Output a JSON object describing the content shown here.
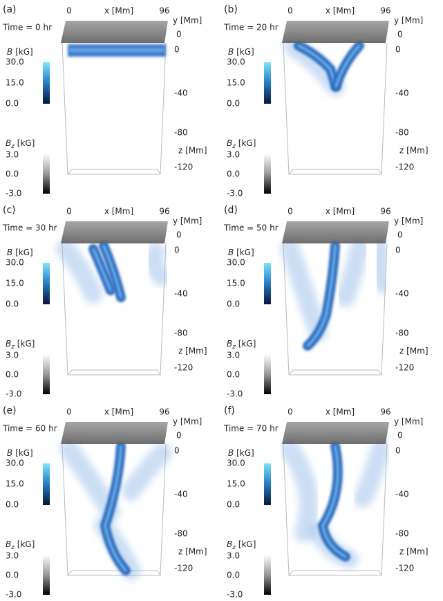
{
  "panels": [
    {
      "label": "(a)",
      "time": "Time = 0 hr",
      "x_label": "x [Mm]",
      "x_ticks": [
        "0",
        "96"
      ],
      "y_label": "y [Mm]",
      "y_ticks": [
        "0"
      ],
      "z_label": "z [Mm]",
      "z_ticks": [
        "0",
        "-40",
        "-80",
        "-120"
      ],
      "b_label": {
        "symbol": "B",
        "unit": "[kG]"
      },
      "b_ticks": [
        "30.0",
        "15.0",
        "0.0"
      ],
      "bz_label": {
        "symbol": "B",
        "subscript": "z",
        "unit": "[kG]"
      },
      "bz_ticks": [
        "3.0",
        "0.0",
        "-3.0"
      ]
    },
    {
      "label": "(b)",
      "time": "Time = 20 hr",
      "x_label": "x [Mm]",
      "x_ticks": [
        "0",
        "96"
      ],
      "y_label": "y [Mm]",
      "y_ticks": [
        "0"
      ],
      "z_label": "z [Mm]",
      "z_ticks": [
        "0",
        "-40",
        "-80",
        "-120"
      ],
      "b_label": {
        "symbol": "B",
        "unit": "[kG]"
      },
      "b_ticks": [
        "30.0",
        "15.0",
        "0.0"
      ],
      "bz_label": {
        "symbol": "B",
        "subscript": "z",
        "unit": "[kG]"
      },
      "bz_ticks": [
        "3.0",
        "0.0",
        "-3.0"
      ]
    },
    {
      "label": "(c)",
      "time": "Time = 30 hr",
      "x_label": "x [Mm]",
      "x_ticks": [
        "0",
        "96"
      ],
      "y_label": "y [Mm]",
      "y_ticks": [
        "0"
      ],
      "z_label": "z [Mm]",
      "z_ticks": [
        "0",
        "-40",
        "-80",
        "-120"
      ],
      "b_label": {
        "symbol": "B",
        "unit": "[kG]"
      },
      "b_ticks": [
        "30.0",
        "15.0",
        "0.0"
      ],
      "bz_label": {
        "symbol": "B",
        "subscript": "z",
        "unit": "[kG]"
      },
      "bz_ticks": [
        "3.0",
        "0.0",
        "-3.0"
      ]
    },
    {
      "label": "(d)",
      "time": "Time = 50 hr",
      "x_label": "x [Mm]",
      "x_ticks": [
        "0",
        "96"
      ],
      "y_label": "y [Mm]",
      "y_ticks": [
        "0"
      ],
      "z_label": "z [Mm]",
      "z_ticks": [
        "0",
        "-40",
        "-80",
        "-120"
      ],
      "b_label": {
        "symbol": "B",
        "unit": "[kG]"
      },
      "b_ticks": [
        "30.0",
        "15.0",
        "0.0"
      ],
      "bz_label": {
        "symbol": "B",
        "subscript": "z",
        "unit": "[kG]"
      },
      "bz_ticks": [
        "3.0",
        "0.0",
        "-3.0"
      ]
    },
    {
      "label": "(e)",
      "time": "Time = 60 hr",
      "x_label": "x [Mm]",
      "x_ticks": [
        "0",
        "96"
      ],
      "y_label": "y [Mm]",
      "y_ticks": [
        "0"
      ],
      "z_label": "z [Mm]",
      "z_ticks": [
        "0",
        "-40",
        "-80",
        "-120"
      ],
      "b_label": {
        "symbol": "B",
        "unit": "[kG]"
      },
      "b_ticks": [
        "30.0",
        "15.0",
        "0.0"
      ],
      "bz_label": {
        "symbol": "B",
        "subscript": "z",
        "unit": "[kG]"
      },
      "bz_ticks": [
        "3.0",
        "0.0",
        "-3.0"
      ]
    },
    {
      "label": "(f)",
      "time": "Time = 70 hr",
      "x_label": "x [Mm]",
      "x_ticks": [
        "0",
        "96"
      ],
      "y_label": "y [Mm]",
      "y_ticks": [
        "0"
      ],
      "z_label": "z [Mm]",
      "z_ticks": [
        "0",
        "-40",
        "-80",
        "-120"
      ],
      "b_label": {
        "symbol": "B",
        "unit": "[kG]"
      },
      "b_ticks": [
        "30.0",
        "15.0",
        "0.0"
      ],
      "bz_label": {
        "symbol": "B",
        "subscript": "z",
        "unit": "[kG]"
      },
      "bz_ticks": [
        "3.0",
        "0.0",
        "-3.0"
      ]
    }
  ]
}
